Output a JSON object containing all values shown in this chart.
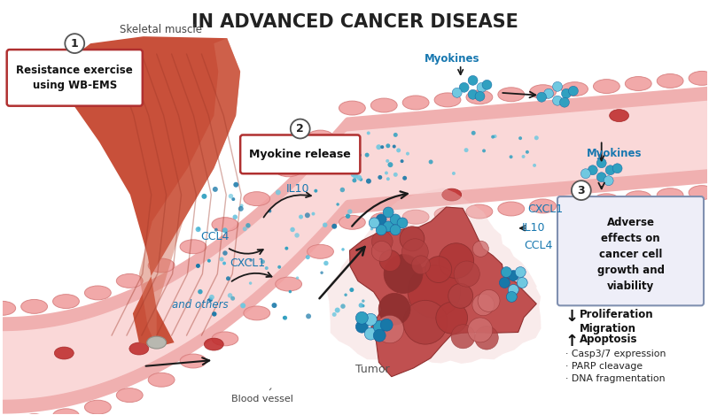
{
  "title": "IN ADVANCED CANCER DISEASE",
  "title_fontsize": 15,
  "title_color": "#222222",
  "bg_color": "#ffffff",
  "skeletal_muscle_label": "Skeletal muscle",
  "blood_vessel_label": "Blood vessel",
  "tumor_label": "Tumor",
  "box1_label": "Resistance exercise\nusing WB-EMS",
  "box2_label": "Myokine release",
  "box3_label": "Adverse\neffects on\ncancer cell\ngrowth and\nviability",
  "myokines_label1": "Myokines",
  "myokines_label2": "Myokines",
  "il10_label": "IL10",
  "ccl4_label": "CCL4",
  "cxcl1_label1": "CXCL1",
  "and_others_label": "and others",
  "cxcl1_label2": "CXCL1",
  "il10_label2": "IL10",
  "ccl4_label2": "CCL4",
  "prolif_label": "Proliferation\nMigration",
  "apop_label": "Apoptosis",
  "bullet1": "· Casp3/7 expression",
  "bullet2": "· PARP cleavage",
  "bullet3": "· DNA fragmentation",
  "muscle_color": "#c8503a",
  "muscle_light": "#d4705a",
  "muscle_dark": "#a03828",
  "muscle_stripe": "#b84535",
  "vessel_outer_color": "#f0b0b0",
  "vessel_inner_color": "#fad8d8",
  "vessel_cell_color": "#f0a0a0",
  "vessel_cell_border": "#d88080",
  "tumor_outer_color": "#e8a0a0",
  "tumor_color": "#c05050",
  "tumor_dark": "#903030",
  "tumor_mid": "#b04040",
  "dot_teal": "#30a0c0",
  "dot_blue": "#1878a8",
  "dot_light": "#70c8e0",
  "red_cell_color": "#c03030",
  "red_cell_border": "#a02020",
  "box1_border": "#b03030",
  "box2_border": "#b03030",
  "box3_border": "#8090b0",
  "box3_fill": "#eeeef8",
  "arrow_color": "#1a1a1a",
  "myokine_text_color": "#1878b0",
  "label_color": "#1878b0",
  "label_italic_color": "#1878b0"
}
